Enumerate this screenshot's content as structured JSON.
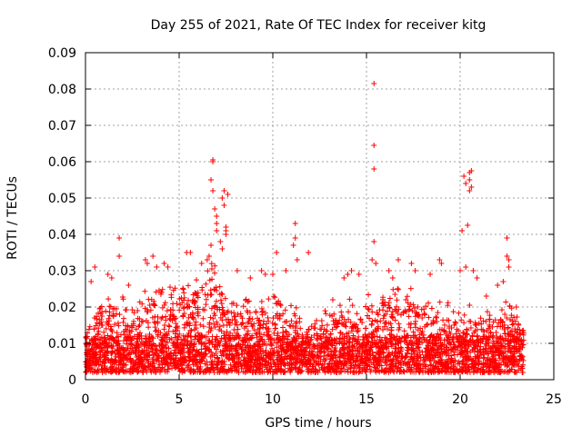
{
  "chart_data": {
    "type": "scatter",
    "title": "Day 255 of 2021, Rate Of TEC Index for receiver kitg",
    "xlabel": "GPS time / hours",
    "ylabel": "ROTI / TECUs",
    "xlim": [
      0,
      25
    ],
    "ylim": [
      0,
      0.09
    ],
    "grid": true,
    "marker": "+",
    "marker_color": "#ff0000",
    "x_ticks": [
      0,
      5,
      10,
      15,
      20,
      25
    ],
    "x_tick_labels": [
      "0",
      "5",
      "10",
      "15",
      "20",
      "25"
    ],
    "y_ticks": [
      0,
      0.01,
      0.02,
      0.03,
      0.04,
      0.05,
      0.06,
      0.07,
      0.08,
      0.09
    ],
    "y_tick_labels": [
      "0",
      "0.01",
      "0.02",
      "0.03",
      "0.04",
      "0.05",
      "0.06",
      "0.07",
      "0.08",
      "0.09"
    ],
    "dense_band": {
      "x_range": [
        0,
        23.4
      ],
      "envelope": [
        [
          0.0,
          0.016
        ],
        [
          0.5,
          0.02
        ],
        [
          1.0,
          0.022
        ],
        [
          1.5,
          0.024
        ],
        [
          2.0,
          0.022
        ],
        [
          2.5,
          0.02
        ],
        [
          3.0,
          0.022
        ],
        [
          3.5,
          0.024
        ],
        [
          4.0,
          0.026
        ],
        [
          4.5,
          0.028
        ],
        [
          5.0,
          0.028
        ],
        [
          5.5,
          0.026
        ],
        [
          6.0,
          0.026
        ],
        [
          6.5,
          0.03
        ],
        [
          7.0,
          0.03
        ],
        [
          7.5,
          0.026
        ],
        [
          8.0,
          0.022
        ],
        [
          8.5,
          0.022
        ],
        [
          9.0,
          0.022
        ],
        [
          9.5,
          0.022
        ],
        [
          10.0,
          0.024
        ],
        [
          10.5,
          0.022
        ],
        [
          11.0,
          0.02
        ],
        [
          11.5,
          0.018
        ],
        [
          12.0,
          0.018
        ],
        [
          12.5,
          0.018
        ],
        [
          13.0,
          0.018
        ],
        [
          13.5,
          0.02
        ],
        [
          14.0,
          0.022
        ],
        [
          14.5,
          0.02
        ],
        [
          15.0,
          0.022
        ],
        [
          15.5,
          0.022
        ],
        [
          16.0,
          0.024
        ],
        [
          16.5,
          0.024
        ],
        [
          17.0,
          0.024
        ],
        [
          17.5,
          0.024
        ],
        [
          18.0,
          0.022
        ],
        [
          18.5,
          0.02
        ],
        [
          19.0,
          0.02
        ],
        [
          19.5,
          0.02
        ],
        [
          20.0,
          0.018
        ],
        [
          20.5,
          0.02
        ],
        [
          21.0,
          0.02
        ],
        [
          21.5,
          0.018
        ],
        [
          22.0,
          0.018
        ],
        [
          22.5,
          0.022
        ],
        [
          23.0,
          0.018
        ],
        [
          23.4,
          0.016
        ]
      ],
      "floor": 0.002
    },
    "points": [
      [
        0.5,
        0.031
      ],
      [
        0.3,
        0.027
      ],
      [
        1.2,
        0.029
      ],
      [
        1.4,
        0.028
      ],
      [
        1.8,
        0.039
      ],
      [
        1.8,
        0.034
      ],
      [
        2.3,
        0.026
      ],
      [
        3.2,
        0.033
      ],
      [
        3.3,
        0.032
      ],
      [
        3.6,
        0.034
      ],
      [
        3.8,
        0.031
      ],
      [
        4.2,
        0.032
      ],
      [
        4.4,
        0.031
      ],
      [
        5.4,
        0.035
      ],
      [
        5.6,
        0.035
      ],
      [
        6.2,
        0.032
      ],
      [
        6.5,
        0.033
      ],
      [
        6.6,
        0.034
      ],
      [
        6.7,
        0.037
      ],
      [
        6.8,
        0.0605
      ],
      [
        6.8,
        0.06
      ],
      [
        6.7,
        0.055
      ],
      [
        6.8,
        0.052
      ],
      [
        6.9,
        0.047
      ],
      [
        7.0,
        0.045
      ],
      [
        7.0,
        0.043
      ],
      [
        7.0,
        0.041
      ],
      [
        7.2,
        0.038
      ],
      [
        7.4,
        0.052
      ],
      [
        7.3,
        0.05
      ],
      [
        7.4,
        0.048
      ],
      [
        7.5,
        0.042
      ],
      [
        7.5,
        0.041
      ],
      [
        7.5,
        0.04
      ],
      [
        7.6,
        0.051
      ],
      [
        7.3,
        0.036
      ],
      [
        8.1,
        0.03
      ],
      [
        8.8,
        0.028
      ],
      [
        9.4,
        0.03
      ],
      [
        9.6,
        0.029
      ],
      [
        10.0,
        0.029
      ],
      [
        10.2,
        0.035
      ],
      [
        10.7,
        0.03
      ],
      [
        11.2,
        0.043
      ],
      [
        11.2,
        0.039
      ],
      [
        11.1,
        0.037
      ],
      [
        11.3,
        0.033
      ],
      [
        11.9,
        0.035
      ],
      [
        13.2,
        0.022
      ],
      [
        13.8,
        0.028
      ],
      [
        14.0,
        0.029
      ],
      [
        14.2,
        0.03
      ],
      [
        14.6,
        0.029
      ],
      [
        15.4,
        0.0815
      ],
      [
        15.4,
        0.0645
      ],
      [
        15.4,
        0.058
      ],
      [
        15.4,
        0.038
      ],
      [
        15.3,
        0.033
      ],
      [
        15.5,
        0.032
      ],
      [
        16.2,
        0.03
      ],
      [
        16.4,
        0.028
      ],
      [
        16.7,
        0.033
      ],
      [
        17.4,
        0.032
      ],
      [
        17.6,
        0.03
      ],
      [
        18.4,
        0.029
      ],
      [
        18.9,
        0.033
      ],
      [
        19.0,
        0.032
      ],
      [
        20.0,
        0.03
      ],
      [
        20.1,
        0.041
      ],
      [
        20.2,
        0.056
      ],
      [
        20.3,
        0.054
      ],
      [
        20.4,
        0.0425
      ],
      [
        20.5,
        0.057
      ],
      [
        20.6,
        0.0575
      ],
      [
        20.5,
        0.055
      ],
      [
        20.6,
        0.053
      ],
      [
        20.5,
        0.052
      ],
      [
        20.3,
        0.031
      ],
      [
        20.7,
        0.03
      ],
      [
        20.9,
        0.028
      ],
      [
        21.4,
        0.023
      ],
      [
        22.0,
        0.026
      ],
      [
        22.3,
        0.027
      ],
      [
        22.5,
        0.039
      ],
      [
        22.5,
        0.034
      ],
      [
        22.6,
        0.033
      ],
      [
        22.6,
        0.031
      ],
      [
        23.0,
        0.02
      ]
    ]
  }
}
